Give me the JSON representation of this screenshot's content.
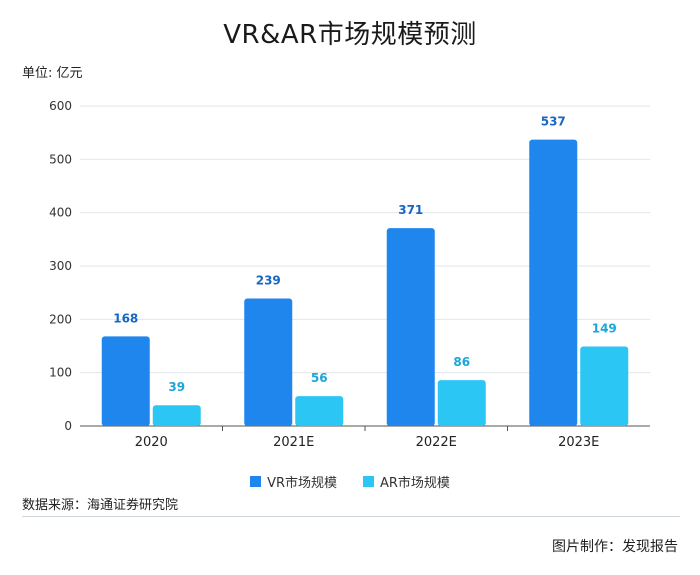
{
  "colors": {
    "vr": "#1f86ee",
    "ar": "#2cc6f5",
    "vr_label": "#1766c4",
    "ar_label": "#1aa6d8",
    "grid": "#e2e6ec",
    "axis": "#555555"
  },
  "header": {
    "title": "VR&AR市场规模预测",
    "unit": "单位: 亿元"
  },
  "footer": {
    "source": "数据来源：海通证券研究院",
    "credit": "图片制作：发现报告"
  },
  "legend": {
    "vr": "VR市场规模",
    "ar": "AR市场规模"
  },
  "chart_data": {
    "type": "bar",
    "title": "VR&AR市场规模预测",
    "ylabel": "单位: 亿元",
    "xlabel": "",
    "categories": [
      "2020",
      "2021E",
      "2022E",
      "2023E"
    ],
    "series": [
      {
        "name": "VR市场规模",
        "values": [
          168,
          239,
          371,
          537
        ]
      },
      {
        "name": "AR市场规模",
        "values": [
          39,
          56,
          86,
          149
        ]
      }
    ],
    "ylim": [
      0,
      600
    ],
    "yticks": [
      0,
      100,
      200,
      300,
      400,
      500,
      600
    ],
    "grid": true,
    "legend": "bottom"
  }
}
